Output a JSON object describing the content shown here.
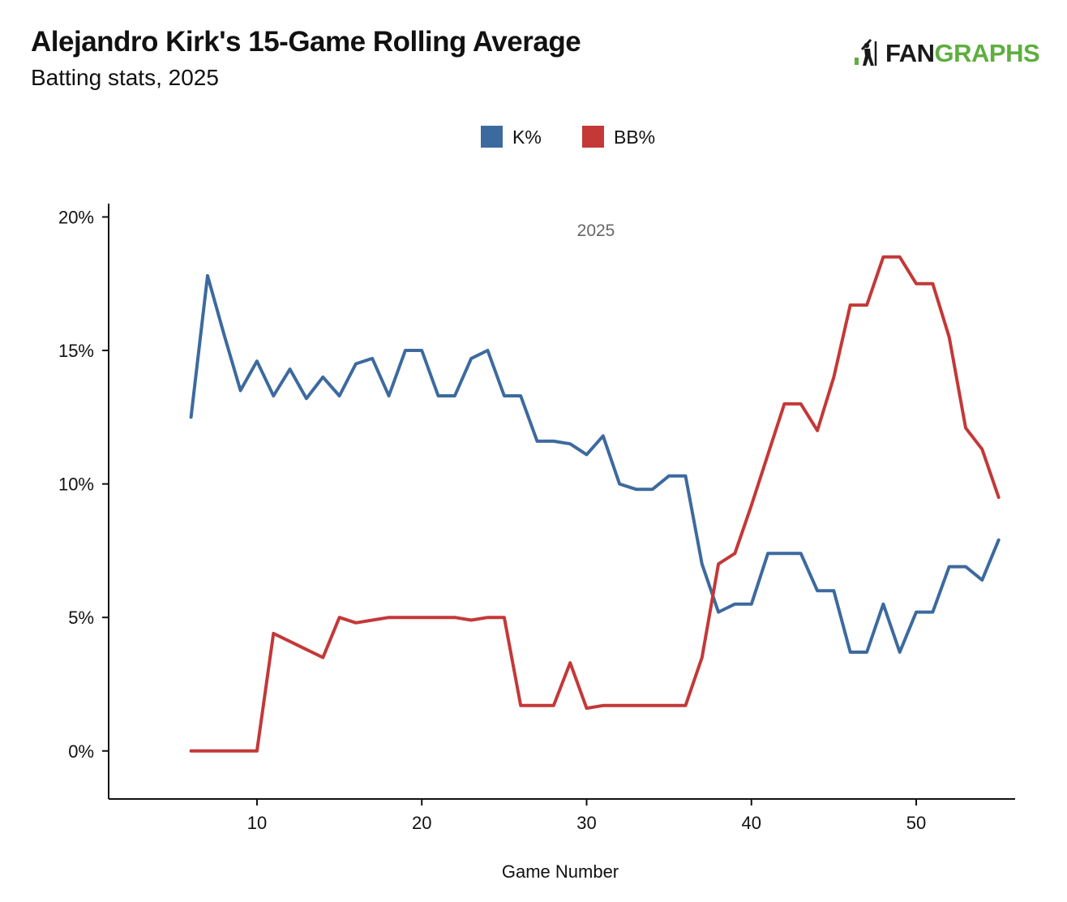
{
  "header": {
    "title": "Alejandro Kirk's 15-Game Rolling Average",
    "subtitle": "Batting stats, 2025"
  },
  "logo": {
    "fan": "FAN",
    "graphs": "GRAPHS",
    "icon": "batter-icon",
    "colors": {
      "fan": "#1a1a1a",
      "graphs": "#5fae3f"
    }
  },
  "chart_data": {
    "type": "line",
    "title": "Alejandro Kirk's 15-Game Rolling Average",
    "subtitle": "Batting stats, 2025",
    "xlabel": "Game Number",
    "ylabel": "",
    "annotation": "2025",
    "xlim": [
      1,
      56
    ],
    "ylim": [
      -1.8,
      20.5
    ],
    "x_ticks": [
      10,
      20,
      30,
      40,
      50
    ],
    "y_ticks": [
      0,
      5,
      10,
      15,
      20
    ],
    "y_tick_labels": [
      "0%",
      "5%",
      "10%",
      "15%",
      "20%"
    ],
    "grid": false,
    "legend_position": "top-center",
    "x": [
      6,
      7,
      8,
      9,
      10,
      11,
      12,
      13,
      14,
      15,
      16,
      17,
      18,
      19,
      20,
      21,
      22,
      23,
      24,
      25,
      26,
      27,
      28,
      29,
      30,
      31,
      32,
      33,
      34,
      35,
      36,
      37,
      38,
      39,
      40,
      41,
      42,
      43,
      44,
      45,
      46,
      47,
      48,
      49,
      50,
      51,
      52,
      53,
      54,
      55
    ],
    "series": [
      {
        "name": "K%",
        "color": "#3d6a9e",
        "values": [
          12.5,
          17.8,
          15.6,
          13.5,
          14.6,
          13.3,
          14.3,
          13.2,
          14.0,
          13.3,
          14.5,
          14.7,
          13.3,
          15.0,
          15.0,
          13.3,
          13.3,
          14.7,
          15.0,
          13.3,
          13.3,
          11.6,
          11.6,
          11.5,
          11.1,
          11.8,
          10.0,
          9.8,
          9.8,
          10.3,
          10.3,
          7.0,
          5.2,
          5.5,
          5.5,
          7.4,
          7.4,
          7.4,
          6.0,
          6.0,
          3.7,
          3.7,
          5.5,
          3.7,
          5.2,
          5.2,
          6.9,
          6.9,
          6.4,
          7.9
        ]
      },
      {
        "name": "BB%",
        "color": "#c43838",
        "values": [
          0,
          0,
          0,
          0,
          0,
          4.4,
          4.1,
          3.8,
          3.5,
          5.0,
          4.8,
          4.9,
          5.0,
          5.0,
          5.0,
          5.0,
          5.0,
          4.9,
          5.0,
          5.0,
          1.7,
          1.7,
          1.7,
          3.3,
          1.6,
          1.7,
          1.7,
          1.7,
          1.7,
          1.7,
          1.7,
          3.5,
          7.0,
          7.4,
          9.2,
          11.1,
          13.0,
          13.0,
          12.0,
          14.0,
          16.7,
          16.7,
          18.5,
          18.5,
          17.5,
          17.5,
          15.5,
          12.1,
          11.3,
          9.5
        ]
      }
    ]
  }
}
